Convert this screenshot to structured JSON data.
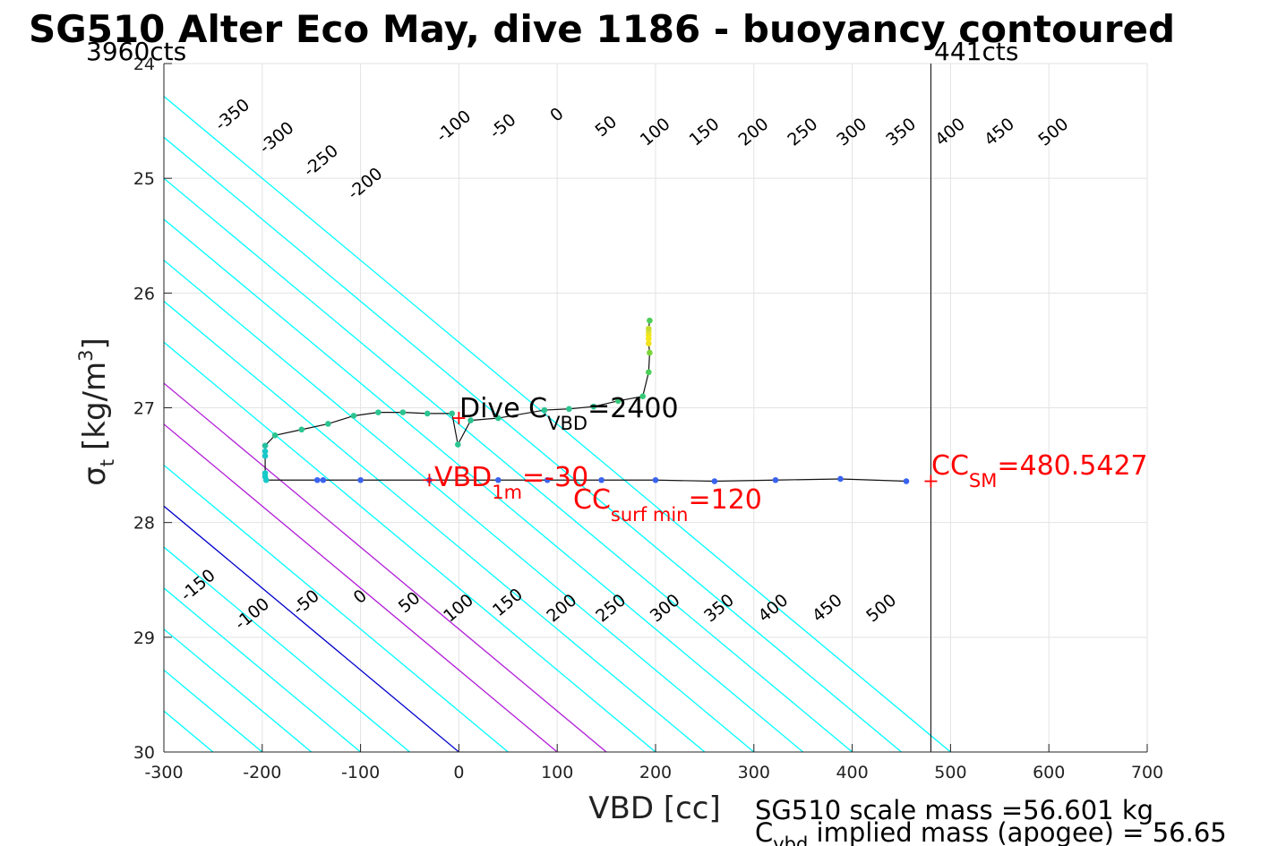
{
  "chart_data": {
    "type": "scatter",
    "title": "SG510 Alter Eco May, dive 1186 - buoyancy contoured",
    "xlabel": "VBD [cc]",
    "ylabel": {
      "main": "σ",
      "sub": "t",
      "unit_pre": "[kg/m",
      "unit_sup": "3",
      "unit_post": "]"
    },
    "xlim": [
      -300,
      700
    ],
    "ylim": [
      24,
      30
    ],
    "y_reversed": true,
    "grid": true,
    "xticks": [
      -300,
      -200,
      -100,
      0,
      100,
      200,
      300,
      400,
      500,
      600,
      700
    ],
    "yticks": [
      24,
      25,
      26,
      27,
      28,
      29,
      30
    ],
    "xtick_labels": [
      "-300",
      "-200",
      "-100",
      "0",
      "100",
      "200",
      "300",
      "400",
      "500",
      "600",
      "700"
    ],
    "ytick_labels": [
      "24",
      "25",
      "26",
      "27",
      "28",
      "29",
      "30"
    ],
    "vbd_limits": {
      "left_label": "3960cts",
      "right_label": "441cts",
      "right_line_x": 480
    },
    "contours": {
      "slope_vbd_per_sigma": 140,
      "values": [
        -350,
        -300,
        -250,
        -200,
        -150,
        -100,
        -50,
        0,
        50,
        100,
        150,
        200,
        250,
        300,
        350,
        400,
        450,
        500
      ],
      "colors": {
        "default": "#00ffff",
        "zero": "#0000cd",
        "magenta": "#b21ed7"
      },
      "magenta_values": [
        100,
        150
      ],
      "x_at_sigma30": [
        -350,
        -300,
        -250,
        -200,
        -150,
        -100,
        -50,
        0,
        50,
        100,
        150,
        200,
        250,
        300,
        350,
        400,
        450,
        500
      ],
      "top_labels": [
        {
          "value": "-350",
          "x": -230,
          "y": 24.45
        },
        {
          "value": "-300",
          "x": -185,
          "y": 24.65
        },
        {
          "value": "-250",
          "x": -140,
          "y": 24.85
        },
        {
          "value": "-200",
          "x": -95,
          "y": 25.05
        },
        {
          "value": "-100",
          "x": -5,
          "y": 24.55
        },
        {
          "value": "-50",
          "x": 45,
          "y": 24.55
        },
        {
          "value": "0",
          "x": 100,
          "y": 24.45
        },
        {
          "value": "50",
          "x": 150,
          "y": 24.55
        },
        {
          "value": "100",
          "x": 200,
          "y": 24.6
        },
        {
          "value": "150",
          "x": 250,
          "y": 24.6
        },
        {
          "value": "200",
          "x": 300,
          "y": 24.6
        },
        {
          "value": "250",
          "x": 350,
          "y": 24.6
        },
        {
          "value": "300",
          "x": 400,
          "y": 24.6
        },
        {
          "value": "350",
          "x": 450,
          "y": 24.6
        },
        {
          "value": "400",
          "x": 500,
          "y": 24.6
        },
        {
          "value": "450",
          "x": 550,
          "y": 24.6
        },
        {
          "value": "500",
          "x": 605,
          "y": 24.6
        }
      ],
      "bottom_labels": [
        {
          "value": "-150",
          "x": -265,
          "y": 28.55
        },
        {
          "value": "-100",
          "x": -210,
          "y": 28.8
        },
        {
          "value": "-50",
          "x": -155,
          "y": 28.7
        },
        {
          "value": "0",
          "x": -100,
          "y": 28.65
        },
        {
          "value": "50",
          "x": -50,
          "y": 28.7
        },
        {
          "value": "100",
          "x": 0,
          "y": 28.75
        },
        {
          "value": "150",
          "x": 50,
          "y": 28.7
        },
        {
          "value": "200",
          "x": 105,
          "y": 28.75
        },
        {
          "value": "250",
          "x": 155,
          "y": 28.75
        },
        {
          "value": "300",
          "x": 210,
          "y": 28.75
        },
        {
          "value": "350",
          "x": 265,
          "y": 28.75
        },
        {
          "value": "400",
          "x": 320,
          "y": 28.75
        },
        {
          "value": "450",
          "x": 375,
          "y": 28.75
        },
        {
          "value": "500",
          "x": 430,
          "y": 28.75
        }
      ]
    },
    "dive_trace": {
      "points": [
        {
          "x": 455,
          "y": 27.64,
          "color": "#3a63f0"
        },
        {
          "x": 388,
          "y": 27.62,
          "color": "#3a63f0"
        },
        {
          "x": 322,
          "y": 27.63,
          "color": "#3a63f0"
        },
        {
          "x": 260,
          "y": 27.64,
          "color": "#3a63f0"
        },
        {
          "x": 200,
          "y": 27.63,
          "color": "#3a63f0"
        },
        {
          "x": 145,
          "y": 27.63,
          "color": "#3a63f0"
        },
        {
          "x": 90,
          "y": 27.63,
          "color": "#3a63f0"
        },
        {
          "x": 40,
          "y": 27.63,
          "color": "#3a63f0"
        },
        {
          "x": -30,
          "y": 27.63,
          "color": "#3a63f0"
        },
        {
          "x": -100,
          "y": 27.63,
          "color": "#3a63f0"
        },
        {
          "x": -138,
          "y": 27.63,
          "color": "#3a63f0"
        },
        {
          "x": -144,
          "y": 27.63,
          "color": "#3a63f0"
        },
        {
          "x": -196,
          "y": 27.63,
          "color": "#19c8c8"
        },
        {
          "x": -197,
          "y": 27.6,
          "color": "#19c8c8"
        },
        {
          "x": -197,
          "y": 27.57,
          "color": "#19c8c8"
        },
        {
          "x": -197,
          "y": 27.42,
          "color": "#19c8c8"
        },
        {
          "x": -197,
          "y": 27.38,
          "color": "#19c8c8"
        },
        {
          "x": -197,
          "y": 27.33,
          "color": "#25c0a0"
        },
        {
          "x": -187,
          "y": 27.24,
          "color": "#2cc490"
        },
        {
          "x": -160,
          "y": 27.19,
          "color": "#2cc490"
        },
        {
          "x": -133,
          "y": 27.14,
          "color": "#2cc490"
        },
        {
          "x": -107,
          "y": 27.07,
          "color": "#2cc490"
        },
        {
          "x": -82,
          "y": 27.04,
          "color": "#2cc490"
        },
        {
          "x": -57,
          "y": 27.04,
          "color": "#2cc490"
        },
        {
          "x": -32,
          "y": 27.05,
          "color": "#2cc490"
        },
        {
          "x": -7,
          "y": 27.05,
          "color": "#2cc490"
        },
        {
          "x": -1,
          "y": 27.32,
          "color": "#2cc490"
        },
        {
          "x": 12,
          "y": 27.11,
          "color": "#2cc490"
        },
        {
          "x": 40,
          "y": 27.09,
          "color": "#2cc490"
        },
        {
          "x": 87,
          "y": 27.02,
          "color": "#2cc490"
        },
        {
          "x": 112,
          "y": 27.01,
          "color": "#2cc490"
        },
        {
          "x": 137,
          "y": 26.99,
          "color": "#2cc490"
        },
        {
          "x": 162,
          "y": 26.94,
          "color": "#35c878"
        },
        {
          "x": 187,
          "y": 26.9,
          "color": "#35c878"
        },
        {
          "x": 193,
          "y": 26.69,
          "color": "#4ccf58"
        },
        {
          "x": 194,
          "y": 26.52,
          "color": "#7bd43a"
        },
        {
          "x": 193,
          "y": 26.44,
          "color": "#f0e020"
        },
        {
          "x": 193,
          "y": 26.4,
          "color": "#f4e81a"
        },
        {
          "x": 193,
          "y": 26.37,
          "color": "#f4e81a"
        },
        {
          "x": 193,
          "y": 26.34,
          "color": "#e4e22a"
        },
        {
          "x": 193,
          "y": 26.31,
          "color": "#c8dc30"
        },
        {
          "x": 194,
          "y": 26.24,
          "color": "#4ccf58"
        }
      ]
    },
    "markers": [
      {
        "name": "vbd-1m-marker",
        "x": -30,
        "y": 27.63
      },
      {
        "name": "dive-cvbd-marker",
        "x": 0,
        "y": 27.09
      },
      {
        "name": "cc-sm-marker",
        "x": 480,
        "y": 27.64
      }
    ],
    "annotations": {
      "dive_cvbd": {
        "pre": "Dive C",
        "sub": "VBD",
        "post": "=2400",
        "color": "#000000"
      },
      "vbd_1m": {
        "pre": "VBD",
        "sub": "1m",
        "post": "=-30",
        "color": "#ff0000"
      },
      "cc_surf": {
        "pre": "CC",
        "sub": "surf min",
        "post": "=120",
        "color": "#ff0000"
      },
      "cc_sm": {
        "pre": "CC",
        "sub": "SM",
        "post": "=480.5427",
        "color": "#ff0000"
      }
    },
    "mass_text": {
      "line1": "SG510 scale mass =56.601 kg",
      "line2_pre": "C",
      "line2_sub": "vbd",
      "line2_post": " implied mass (apogee) = 56.65"
    }
  }
}
